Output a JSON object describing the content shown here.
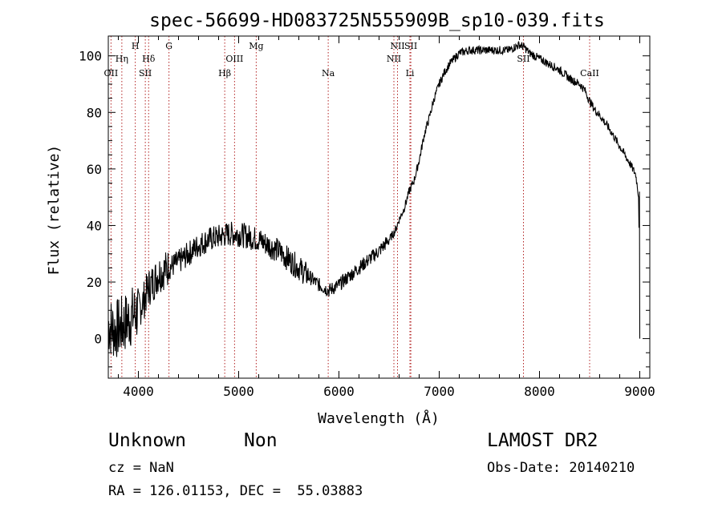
{
  "chart_data": {
    "type": "line",
    "title": "spec-56699-HD083725N555909B_sp10-039.fits",
    "xlabel": "Wavelength (Å)",
    "ylabel": "Flux (relative)",
    "xlim": [
      3700,
      9100
    ],
    "ylim": [
      -14,
      107
    ],
    "xticks": [
      4000,
      5000,
      6000,
      7000,
      8000,
      9000
    ],
    "yticks": [
      0,
      20,
      40,
      60,
      80,
      100
    ],
    "grid": false,
    "series": [
      {
        "name": "flux",
        "x": [
          3700,
          3760,
          3820,
          3880,
          3940,
          4000,
          4060,
          4100,
          4150,
          4200,
          4300,
          4400,
          4500,
          4600,
          4700,
          4800,
          4900,
          5000,
          5100,
          5200,
          5300,
          5400,
          5500,
          5600,
          5700,
          5800,
          5900,
          6000,
          6100,
          6200,
          6300,
          6400,
          6500,
          6560,
          6600,
          6650,
          6700,
          6750,
          6800,
          6850,
          6900,
          6950,
          7000,
          7050,
          7100,
          7150,
          7200,
          7300,
          7400,
          7500,
          7600,
          7700,
          7750,
          7800,
          7850,
          7900,
          8000,
          8100,
          8200,
          8300,
          8400,
          8450,
          8500,
          8550,
          8600,
          8700,
          8800,
          8900,
          8960,
          8990,
          9000
        ],
        "y": [
          5,
          3,
          4,
          6,
          8,
          10,
          14,
          18,
          20,
          23,
          25,
          27,
          30,
          33,
          35,
          36,
          37,
          37,
          36,
          35,
          33,
          31,
          28,
          25,
          22,
          19,
          17,
          19,
          22,
          25,
          28,
          31,
          35,
          38,
          42,
          46,
          52,
          56,
          63,
          72,
          78,
          85,
          90,
          94,
          97,
          99,
          101,
          102,
          102,
          102,
          102,
          102,
          103,
          104,
          103,
          101,
          99,
          97,
          95,
          92,
          90,
          88,
          84,
          81,
          79,
          74,
          68,
          62,
          58,
          50,
          0
        ]
      }
    ],
    "lines": [
      {
        "label": "OII",
        "x": 3727,
        "row": 3
      },
      {
        "label": "Hη",
        "x": 3835,
        "row": 2
      },
      {
        "label": "H",
        "x": 3969,
        "row": 1
      },
      {
        "label": "Hδ",
        "x": 4102,
        "row": 2
      },
      {
        "label": "SII",
        "x": 4069,
        "row": 3
      },
      {
        "label": "G",
        "x": 4305,
        "row": 1
      },
      {
        "label": "Hβ",
        "x": 4861,
        "row": 3
      },
      {
        "label": "OIII",
        "x": 4959,
        "row": 2
      },
      {
        "label": "Mg",
        "x": 5175,
        "row": 1
      },
      {
        "label": "Na",
        "x": 5893,
        "row": 3
      },
      {
        "label": "NII",
        "x": 6548,
        "row": 2
      },
      {
        "label": "NII",
        "x": 6584,
        "row": 1
      },
      {
        "label": "SII",
        "x": 6717,
        "row": 1
      },
      {
        "label": "Li",
        "x": 6708,
        "row": 3
      },
      {
        "label": "SII",
        "x": 7840,
        "row": 2
      },
      {
        "label": "CaII",
        "x": 8500,
        "row": 3
      }
    ]
  },
  "info": {
    "name": "Unknown",
    "cls": "Non",
    "survey": "LAMOST DR2",
    "cz": "cz = NaN",
    "obsdate": "Obs-Date: 20140210",
    "radec": "RA = 126.01153, DEC =  55.03883"
  }
}
